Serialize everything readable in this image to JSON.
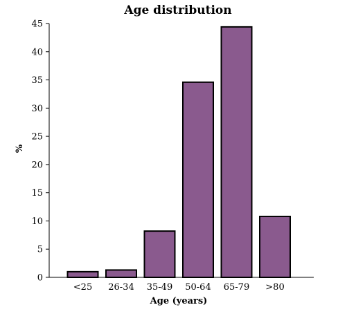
{
  "chart_data": {
    "type": "bar",
    "title": "Age distribution",
    "xlabel": "Age (years)",
    "ylabel": "%",
    "categories": [
      "<25",
      "26-34",
      "35-49",
      "50-64",
      "65-79",
      ">80"
    ],
    "values": [
      1.0,
      1.3,
      8.2,
      34.6,
      44.4,
      10.8
    ],
    "ylim": [
      0,
      45
    ],
    "yticks": [
      0,
      5,
      10,
      15,
      20,
      25,
      30,
      35,
      40,
      45
    ],
    "grid": false,
    "legend": "none",
    "colors": {
      "bar_fill": "#8a5a8e",
      "bar_stroke": "#000000",
      "axis": "#000000"
    }
  }
}
